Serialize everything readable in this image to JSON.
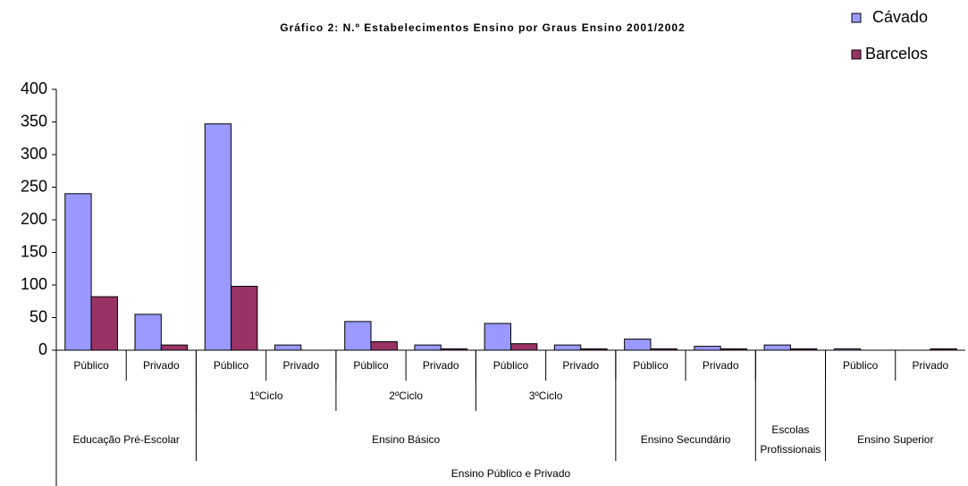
{
  "chart_data": {
    "type": "bar",
    "title": "Gráfico 2: N.º Estabelecimentos Ensino por Graus Ensino 2001/2002",
    "category_tree": {
      "label": "Ensino Público e Privado",
      "children": [
        {
          "label": "Educação Pré-Escolar",
          "children": [
            {
              "label": "Público"
            },
            {
              "label": "Privado"
            }
          ]
        },
        {
          "label": "Ensino Básico",
          "children": [
            {
              "label": "1ºCiclo",
              "children": [
                {
                  "label": "Público"
                },
                {
                  "label": "Privado"
                }
              ]
            },
            {
              "label": "2ºCiclo",
              "children": [
                {
                  "label": "Público"
                },
                {
                  "label": "Privado"
                }
              ]
            },
            {
              "label": "3ºCiclo",
              "children": [
                {
                  "label": "Público"
                },
                {
                  "label": "Privado"
                }
              ]
            }
          ]
        },
        {
          "label": "Ensino Secundário",
          "children": [
            {
              "label": "Público"
            },
            {
              "label": "Privado"
            }
          ]
        },
        {
          "label": "Escolas Profissionais",
          "children": [
            {
              "label": null
            }
          ]
        },
        {
          "label": "Ensino Superior",
          "children": [
            {
              "label": "Público"
            },
            {
              "label": "Privado"
            }
          ]
        }
      ]
    },
    "series": [
      {
        "name": "Cávado",
        "color": "#9999ff",
        "values": [
          240,
          55,
          347,
          8,
          44,
          8,
          41,
          8,
          17,
          6,
          8,
          2,
          0
        ]
      },
      {
        "name": "Barcelos",
        "color": "#993366",
        "values": [
          82,
          8,
          98,
          0,
          13,
          2,
          10,
          2,
          2,
          2,
          2,
          0,
          2
        ]
      }
    ],
    "ylim": [
      0,
      400
    ],
    "yticks": [
      0,
      50,
      100,
      150,
      200,
      250,
      300,
      350,
      400
    ],
    "grid": false,
    "legend": "top-right"
  }
}
